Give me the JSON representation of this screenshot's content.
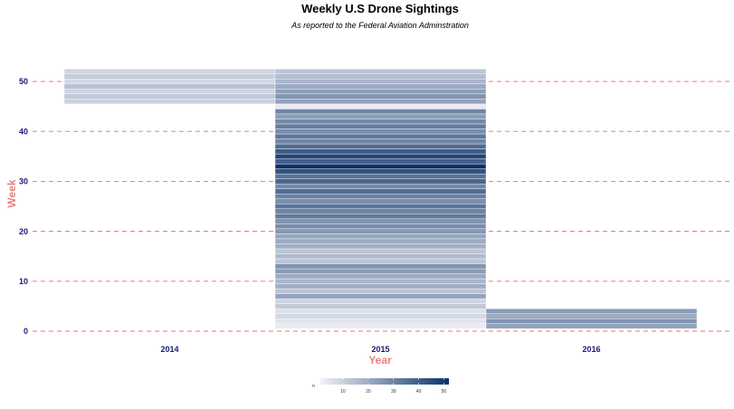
{
  "colors": {
    "low": "#f3f3f7",
    "high": "#0a3168",
    "grid": "#e87070",
    "axis_title": "#e88080",
    "tick": "#1a1a7a"
  },
  "chart_data": {
    "type": "heatmap",
    "title": "Weekly U.S Drone Sightings",
    "subtitle": "As reported to the Federal Aviation Adminstration",
    "xlabel": "Year",
    "ylabel": "Week",
    "categories": [
      "2014",
      "2015",
      "2016"
    ],
    "ylim": [
      0,
      52
    ],
    "yticks": [
      "0",
      "10",
      "20",
      "30",
      "40",
      "50"
    ],
    "grid": true,
    "legend": {
      "title": "n",
      "position": "bottom",
      "ticks": [
        "10",
        "20",
        "30",
        "40",
        "50"
      ],
      "range": [
        1,
        52
      ]
    },
    "cells": [
      {
        "year": "2014",
        "values": [
          {
            "week": 46,
            "n": 10
          },
          {
            "week": 47,
            "n": 12
          },
          {
            "week": 48,
            "n": 9
          },
          {
            "week": 49,
            "n": 14
          },
          {
            "week": 50,
            "n": 8
          },
          {
            "week": 51,
            "n": 11
          },
          {
            "week": 52,
            "n": 9
          }
        ]
      },
      {
        "year": "2015",
        "values": [
          {
            "week": 1,
            "n": 3
          },
          {
            "week": 2,
            "n": 5
          },
          {
            "week": 3,
            "n": 8
          },
          {
            "week": 4,
            "n": 6
          },
          {
            "week": 5,
            "n": 12
          },
          {
            "week": 6,
            "n": 9
          },
          {
            "week": 7,
            "n": 22
          },
          {
            "week": 8,
            "n": 14
          },
          {
            "week": 9,
            "n": 19
          },
          {
            "week": 10,
            "n": 17
          },
          {
            "week": 11,
            "n": 20
          },
          {
            "week": 12,
            "n": 24
          },
          {
            "week": 13,
            "n": 26
          },
          {
            "week": 14,
            "n": 13
          },
          {
            "week": 15,
            "n": 16
          },
          {
            "week": 16,
            "n": 13
          },
          {
            "week": 17,
            "n": 19
          },
          {
            "week": 18,
            "n": 20
          },
          {
            "week": 19,
            "n": 21
          },
          {
            "week": 20,
            "n": 25
          },
          {
            "week": 21,
            "n": 28
          },
          {
            "week": 22,
            "n": 26
          },
          {
            "week": 23,
            "n": 33
          },
          {
            "week": 24,
            "n": 30
          },
          {
            "week": 25,
            "n": 34
          },
          {
            "week": 26,
            "n": 27
          },
          {
            "week": 27,
            "n": 31
          },
          {
            "week": 28,
            "n": 36
          },
          {
            "week": 29,
            "n": 29
          },
          {
            "week": 30,
            "n": 38
          },
          {
            "week": 31,
            "n": 35
          },
          {
            "week": 32,
            "n": 43
          },
          {
            "week": 33,
            "n": 52
          },
          {
            "week": 34,
            "n": 40
          },
          {
            "week": 35,
            "n": 47
          },
          {
            "week": 36,
            "n": 41
          },
          {
            "week": 37,
            "n": 37
          },
          {
            "week": 38,
            "n": 30
          },
          {
            "week": 39,
            "n": 34
          },
          {
            "week": 40,
            "n": 28
          },
          {
            "week": 41,
            "n": 32
          },
          {
            "week": 42,
            "n": 29
          },
          {
            "week": 43,
            "n": 24
          },
          {
            "week": 44,
            "n": 30
          },
          {
            "week": 45,
            "n": 3
          },
          {
            "week": 46,
            "n": 22
          },
          {
            "week": 47,
            "n": 26
          },
          {
            "week": 48,
            "n": 23
          },
          {
            "week": 49,
            "n": 20
          },
          {
            "week": 50,
            "n": 17
          },
          {
            "week": 51,
            "n": 15
          },
          {
            "week": 52,
            "n": 13
          }
        ]
      },
      {
        "year": "2016",
        "values": [
          {
            "week": 1,
            "n": 22
          },
          {
            "week": 2,
            "n": 26
          },
          {
            "week": 3,
            "n": 20
          },
          {
            "week": 4,
            "n": 24
          }
        ]
      }
    ]
  }
}
